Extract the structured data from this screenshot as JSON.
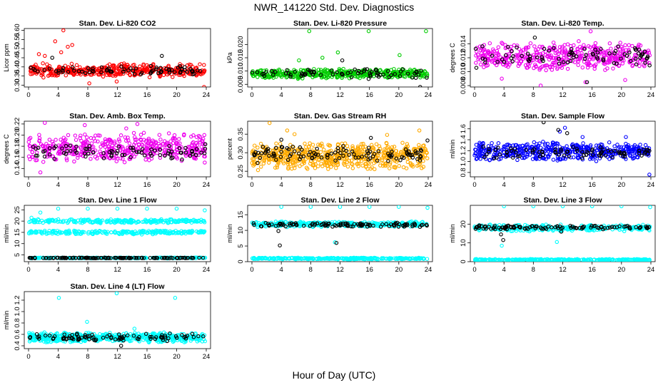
{
  "figure": {
    "title": "NWR_141220  Std. Dev. Diagnostics",
    "xlabel": "Hour of Day (UTC)"
  },
  "chart_data": [
    {
      "type": "scatter",
      "title": "Stan. Dev. Li-820 CO2",
      "ylabel": "Licor ppm",
      "xlim": [
        0,
        24
      ],
      "xticks": [
        0,
        4,
        8,
        12,
        16,
        20,
        24
      ],
      "ylim": [
        0.29,
        0.61
      ],
      "yticks": [
        0.3,
        0.35,
        0.4,
        0.45,
        0.5,
        0.55,
        0.6
      ],
      "ytick_labels": [
        "0.30",
        "0.35",
        "0.40",
        "0.45",
        "0.50",
        "0.55",
        "0.60"
      ],
      "color": "#ff0000",
      "n_points": 420,
      "series": [
        {
          "color": "#ff0000",
          "bands": [
            {
              "min": 0.34,
              "max": 0.42
            }
          ],
          "outliers": [
            [
              3.6,
              0.54
            ],
            [
              4.4,
              0.48
            ],
            [
              4.7,
              0.6
            ],
            [
              5.9,
              0.52
            ],
            [
              5.3,
              0.51
            ],
            [
              1.4,
              0.47
            ],
            [
              2.2,
              0.46
            ],
            [
              8.2,
              0.31
            ],
            [
              23.7,
              0.29
            ],
            [
              11.9,
              0.32
            ]
          ]
        },
        {
          "color": "#000000",
          "bands": [
            {
              "min": 0.35,
              "max": 0.41
            }
          ],
          "outliers": [
            [
              18.0,
              0.46
            ],
            [
              3.2,
              0.45
            ]
          ]
        }
      ]
    },
    {
      "type": "scatter",
      "title": "Stan. Dev. Li-820 Pressure",
      "ylabel": "kPa",
      "xlim": [
        0,
        24
      ],
      "xticks": [
        0,
        4,
        8,
        12,
        16,
        20,
        24
      ],
      "ylim": [
        0.004,
        0.026
      ],
      "yticks": [
        0.005,
        0.01,
        0.015,
        0.02
      ],
      "ytick_labels": [
        "0.005",
        "0.010",
        "0.015",
        "0.020"
      ],
      "color": "#00cc00",
      "n_points": 420,
      "series": [
        {
          "color": "#00cc00",
          "bands": [
            {
              "min": 0.007,
              "max": 0.011
            }
          ],
          "outliers": [
            [
              7.8,
              0.025
            ],
            [
              15.9,
              0.025
            ],
            [
              23.7,
              0.025
            ],
            [
              11.7,
              0.017
            ],
            [
              9.6,
              0.015
            ],
            [
              6.4,
              0.014
            ],
            [
              20.1,
              0.016
            ]
          ]
        },
        {
          "color": "#000000",
          "bands": [
            {
              "min": 0.007,
              "max": 0.011
            }
          ],
          "outliers": [
            [
              22.9,
              0.004
            ],
            [
              12.3,
              0.014
            ]
          ]
        }
      ]
    },
    {
      "type": "scatter",
      "title": "Stan. Dev. Li-820 Temp.",
      "ylabel": "degrees C",
      "xlim": [
        0,
        24
      ],
      "xticks": [
        0,
        4,
        8,
        12,
        16,
        20,
        24
      ],
      "ylim": [
        0.0078,
        0.0162
      ],
      "yticks": [
        0.008,
        0.01,
        0.012,
        0.014
      ],
      "ytick_labels": [
        "0.008",
        "0.010",
        "0.012",
        "0.014"
      ],
      "color": "#ee00ee",
      "n_points": 460,
      "series": [
        {
          "color": "#ee00ee",
          "bands": [
            {
              "min": 0.01,
              "max": 0.0145
            }
          ],
          "outliers": [
            [
              3.7,
              0.009
            ],
            [
              9.0,
              0.008
            ],
            [
              15.1,
              0.0085
            ],
            [
              15.8,
              0.0158
            ],
            [
              20.5,
              0.0088
            ]
          ]
        },
        {
          "color": "#000000",
          "bands": [
            {
              "min": 0.0105,
              "max": 0.0138
            }
          ],
          "outliers": [
            [
              15.3,
              0.0085
            ],
            [
              8.2,
              0.0149
            ]
          ]
        }
      ]
    },
    {
      "type": "scatter",
      "title": "Stan. Dev. Amb. Box Temp.",
      "ylabel": "degrees C",
      "xlim": [
        0,
        24
      ],
      "xticks": [
        0,
        4,
        8,
        12,
        16,
        20,
        24
      ],
      "ylim": [
        0.125,
        0.225
      ],
      "yticks": [
        0.14,
        0.16,
        0.18,
        0.2,
        0.22
      ],
      "ytick_labels": [
        "0.14",
        "0.16",
        "0.18",
        "0.20",
        "0.22"
      ],
      "color": "#ee00ee",
      "n_points": 460,
      "series": [
        {
          "color": "#ee00ee",
          "bands": [
            {
              "min": 0.15,
              "max": 0.205
            }
          ],
          "outliers": [
            [
              2.2,
              0.222
            ],
            [
              1.6,
              0.133
            ],
            [
              14.7,
              0.22
            ],
            [
              7.6,
              0.218
            ],
            [
              13.2,
              0.212
            ]
          ]
        },
        {
          "color": "#000000",
          "bands": [
            {
              "min": 0.155,
              "max": 0.185
            }
          ],
          "outliers": []
        }
      ]
    },
    {
      "type": "scatter",
      "title": "Stan. Dev. Gas Stream RH",
      "ylabel": "percent",
      "xlim": [
        0,
        24
      ],
      "xticks": [
        0,
        4,
        8,
        12,
        16,
        20,
        24
      ],
      "ylim": [
        0.235,
        0.385
      ],
      "yticks": [
        0.25,
        0.3,
        0.35
      ],
      "ytick_labels": [
        "0.25",
        "0.30",
        "0.35"
      ],
      "color": "#ffaa00",
      "n_points": 600,
      "series": [
        {
          "color": "#ffaa00",
          "bands": [
            {
              "min": 0.25,
              "max": 0.33
            }
          ],
          "outliers": [
            [
              2.4,
              0.38
            ],
            [
              4.8,
              0.36
            ],
            [
              22.8,
              0.36
            ],
            [
              5.8,
              0.35
            ],
            [
              18.4,
              0.348
            ]
          ]
        },
        {
          "color": "#000000",
          "bands": [
            {
              "min": 0.27,
              "max": 0.32
            }
          ],
          "outliers": [
            [
              4.0,
              0.335
            ],
            [
              16.2,
              0.34
            ],
            [
              23.9,
              0.333
            ]
          ]
        }
      ]
    },
    {
      "type": "scatter",
      "title": "Stan. Dev. Sample Flow",
      "ylabel": "ml/min",
      "xlim": [
        0,
        24
      ],
      "xticks": [
        0,
        4,
        8,
        12,
        16,
        20,
        24
      ],
      "ylim": [
        0.72,
        1.74
      ],
      "yticks": [
        0.8,
        1.0,
        1.2,
        1.4,
        1.6
      ],
      "ytick_labels": [
        "0.8",
        "1.0",
        "1.2",
        "1.4",
        "1.6"
      ],
      "color": "#0000ff",
      "n_points": 460,
      "series": [
        {
          "color": "#0000ff",
          "bands": [
            {
              "min": 1.0,
              "max": 1.38
            }
          ],
          "outliers": [
            [
              12.3,
              1.62
            ],
            [
              11.6,
              1.55
            ],
            [
              23.8,
              0.76
            ],
            [
              14.7,
              1.45
            ],
            [
              20.6,
              1.45
            ]
          ]
        },
        {
          "color": "#000000",
          "bands": [
            {
              "min": 1.05,
              "max": 1.3
            }
          ],
          "outliers": [
            [
              9.4,
              1.72
            ],
            [
              11.4,
              1.58
            ],
            [
              12.6,
              1.52
            ]
          ]
        }
      ]
    },
    {
      "type": "scatter",
      "title": "Stan. Dev. Line 1 Flow",
      "ylabel": "ml/min",
      "xlim": [
        0,
        24
      ],
      "xticks": [
        0,
        4,
        8,
        12,
        16,
        20,
        24
      ],
      "ylim": [
        2,
        27
      ],
      "yticks": [
        5,
        10,
        15,
        20,
        25
      ],
      "ytick_labels": [
        "5",
        "10",
        "15",
        "20",
        "25"
      ],
      "color": "#00ffff",
      "n_points": 700,
      "series": [
        {
          "color": "#00ffff",
          "bands": [
            {
              "min": 19.0,
              "max": 21.0
            },
            {
              "min": 14.0,
              "max": 16.0
            },
            {
              "min": 3.4,
              "max": 3.9
            }
          ],
          "outliers": [
            [
              4.0,
              25.5
            ],
            [
              8.0,
              25.5
            ],
            [
              12.0,
              25.5
            ],
            [
              16.0,
              25.5
            ],
            [
              20.0,
              25.5
            ],
            [
              23.8,
              24.8
            ],
            [
              1.6,
              23.8
            ],
            [
              0.4,
              21.5
            ]
          ]
        },
        {
          "color": "#000000",
          "bands": [
            {
              "min": 3.5,
              "max": 3.8
            }
          ],
          "outliers": []
        }
      ]
    },
    {
      "type": "scatter",
      "title": "Stan. Dev. Line 2 Flow",
      "ylabel": "ml/min",
      "xlim": [
        0,
        24
      ],
      "xticks": [
        0,
        4,
        8,
        12,
        16,
        20,
        24
      ],
      "ylim": [
        0,
        18
      ],
      "yticks": [
        0,
        5,
        10,
        15
      ],
      "ytick_labels": [
        "0",
        "5",
        "10",
        "15"
      ],
      "color": "#00ffff",
      "n_points": 600,
      "series": [
        {
          "color": "#00ffff",
          "bands": [
            {
              "min": 11.0,
              "max": 13.0
            },
            {
              "min": 0.7,
              "max": 1.3
            }
          ],
          "outliers": [
            [
              4.0,
              17.5
            ],
            [
              8.0,
              17.5
            ],
            [
              12.0,
              17.5
            ],
            [
              16.0,
              17.5
            ],
            [
              20.0,
              17.5
            ],
            [
              23.9,
              17.2
            ],
            [
              11.3,
              6.2
            ]
          ]
        },
        {
          "color": "#000000",
          "bands": [
            {
              "min": 11.0,
              "max": 12.6
            }
          ],
          "outliers": [
            [
              3.8,
              5.2
            ],
            [
              11.5,
              6.0
            ],
            [
              3.6,
              9.8
            ]
          ]
        }
      ]
    },
    {
      "type": "scatter",
      "title": "Stan. Dev. Line 3 Flow",
      "ylabel": "ml/min",
      "xlim": [
        0,
        24
      ],
      "xticks": [
        0,
        4,
        8,
        12,
        16,
        20,
        24
      ],
      "ylim": [
        0,
        30
      ],
      "yticks": [
        0,
        10,
        20
      ],
      "ytick_labels": [
        "0",
        "10",
        "20"
      ],
      "color": "#00ffff",
      "n_points": 600,
      "series": [
        {
          "color": "#00ffff",
          "bands": [
            {
              "min": 16.0,
              "max": 20.0
            },
            {
              "min": 0.5,
              "max": 1.5
            }
          ],
          "outliers": [
            [
              4.0,
              29.5
            ],
            [
              8.0,
              29.5
            ],
            [
              12.0,
              29.5
            ],
            [
              16.0,
              29.5
            ],
            [
              20.0,
              29.5
            ],
            [
              23.9,
              29.0
            ],
            [
              3.7,
              8.5
            ],
            [
              11.2,
              10.5
            ]
          ]
        },
        {
          "color": "#000000",
          "bands": [
            {
              "min": 17.0,
              "max": 19.5
            }
          ],
          "outliers": [
            [
              3.9,
              11.5
            ],
            [
              3.6,
              14.5
            ],
            [
              11.8,
              16.0
            ]
          ]
        }
      ]
    },
    {
      "type": "scatter",
      "title": "Stan. Dev. Line 4 (LT) Flow",
      "ylabel": "ml/min",
      "xlim": [
        0,
        24
      ],
      "xticks": [
        0,
        4,
        8,
        12,
        16,
        20,
        24
      ],
      "ylim": [
        0.35,
        1.35
      ],
      "yticks": [
        0.4,
        0.6,
        0.8,
        1.0,
        1.2
      ],
      "ytick_labels": [
        "0.4",
        "0.6",
        "0.8",
        "1.0",
        "1.2"
      ],
      "color": "#00ffff",
      "n_points": 520,
      "series": [
        {
          "color": "#00ffff",
          "bands": [
            {
              "min": 0.45,
              "max": 0.64
            }
          ],
          "outliers": [
            [
              4.1,
              1.24
            ],
            [
              11.9,
              1.32
            ],
            [
              19.8,
              1.24
            ],
            [
              7.9,
              0.82
            ],
            [
              14.3,
              0.7
            ]
          ]
        },
        {
          "color": "#000000",
          "bands": [
            {
              "min": 0.48,
              "max": 0.62
            }
          ],
          "outliers": [
            [
              12.5,
              0.4
            ]
          ]
        }
      ]
    }
  ]
}
